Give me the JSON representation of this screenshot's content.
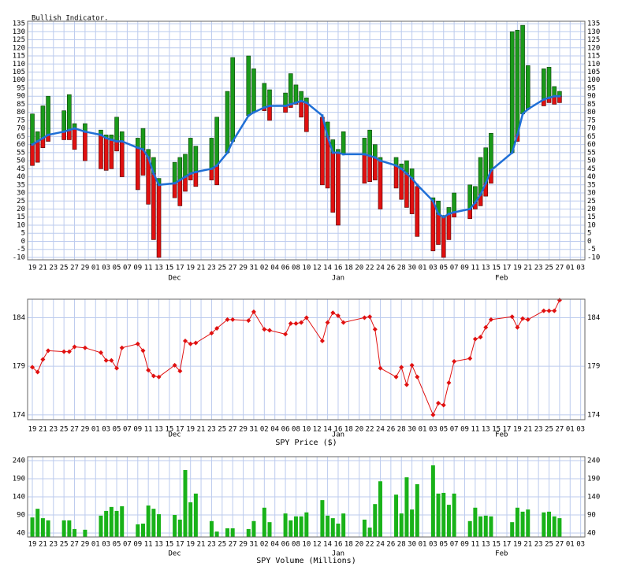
{
  "chart_data": [
    {
      "type": "range-bar",
      "title": "Bullish Indicator.",
      "x": [
        0,
        1,
        2,
        3,
        6,
        7,
        8,
        10,
        13,
        14,
        15,
        16,
        17,
        20,
        21,
        22,
        23,
        24,
        27,
        28,
        29,
        30,
        31,
        34,
        35,
        37,
        38,
        41,
        42,
        44,
        45,
        48,
        49,
        50,
        51,
        52,
        55,
        56,
        57,
        58,
        59,
        63,
        64,
        65,
        66,
        69,
        70,
        71,
        72,
        73,
        76,
        77,
        78,
        79,
        80,
        83,
        84,
        85,
        86,
        87,
        91,
        92,
        93,
        94,
        97,
        98,
        99,
        100
      ],
      "high": [
        79,
        68,
        84,
        90,
        81,
        91,
        73,
        73,
        69,
        66,
        66,
        77,
        68,
        64,
        70,
        57,
        52,
        39,
        49,
        52,
        54,
        64,
        59,
        64,
        77,
        93,
        114,
        115,
        107,
        98,
        94,
        92,
        104,
        97,
        93,
        89,
        77,
        74,
        63,
        57,
        68,
        64,
        69,
        60,
        52,
        52,
        48,
        50,
        45,
        34,
        27,
        25,
        16,
        21,
        30,
        35,
        34,
        52,
        58,
        67,
        130,
        131,
        134,
        109,
        107,
        108,
        96,
        93
      ],
      "low": [
        47,
        49,
        58,
        62,
        63,
        63,
        57,
        50,
        45,
        44,
        45,
        56,
        40,
        32,
        41,
        23,
        1,
        -10,
        27,
        22,
        31,
        38,
        34,
        38,
        35,
        55,
        62,
        78,
        80,
        81,
        75,
        80,
        83,
        85,
        77,
        68,
        35,
        33,
        18,
        10,
        54,
        36,
        37,
        38,
        20,
        33,
        26,
        21,
        17,
        3,
        -6,
        -2,
        -10,
        1,
        15,
        14,
        20,
        22,
        28,
        36,
        55,
        62,
        79,
        82,
        84,
        86,
        85,
        86
      ],
      "line": [
        60,
        62,
        64,
        66,
        68,
        69,
        70,
        68,
        66,
        64,
        63,
        62,
        62,
        58,
        57,
        52,
        42,
        35,
        36,
        38,
        40,
        42,
        43,
        45,
        47,
        55,
        62,
        78,
        80,
        83,
        84,
        84,
        85,
        86,
        87,
        86,
        78,
        65,
        55,
        55,
        54,
        54,
        53,
        52,
        50,
        47,
        45,
        42,
        39,
        35,
        25,
        17,
        15,
        17,
        18,
        20,
        24,
        29,
        36,
        44,
        55,
        66,
        79,
        82,
        88,
        89,
        90,
        90
      ],
      "up_color": "#1a9a1a",
      "down_color": "#e01010",
      "line_color": "#1f6fd6",
      "xlim": [
        -0.9,
        104.8
      ],
      "xticks": [
        {
          "value": 0,
          "label": "19"
        },
        {
          "value": 2,
          "label": "21"
        },
        {
          "value": 4,
          "label": "23"
        },
        {
          "value": 6,
          "label": "25"
        },
        {
          "value": 8,
          "label": "27"
        },
        {
          "value": 10,
          "label": "29"
        },
        {
          "value": 12,
          "label": "01"
        },
        {
          "value": 14,
          "label": "03"
        },
        {
          "value": 16,
          "label": "05"
        },
        {
          "value": 18,
          "label": "07"
        },
        {
          "value": 20,
          "label": "09"
        },
        {
          "value": 22,
          "label": "11"
        },
        {
          "value": 24,
          "label": "13"
        },
        {
          "value": 26,
          "label": "15"
        },
        {
          "value": 28,
          "label": "17"
        },
        {
          "value": 30,
          "label": "19"
        },
        {
          "value": 32,
          "label": "21"
        },
        {
          "value": 34,
          "label": "23"
        },
        {
          "value": 36,
          "label": "25"
        },
        {
          "value": 38,
          "label": "27"
        },
        {
          "value": 40,
          "label": "29"
        },
        {
          "value": 42,
          "label": "31"
        },
        {
          "value": 44,
          "label": "02"
        },
        {
          "value": 46,
          "label": "04"
        },
        {
          "value": 48,
          "label": "06"
        },
        {
          "value": 50,
          "label": "08"
        },
        {
          "value": 52,
          "label": "10"
        },
        {
          "value": 54,
          "label": "12"
        },
        {
          "value": 56,
          "label": "14"
        },
        {
          "value": 58,
          "label": "16"
        },
        {
          "value": 60,
          "label": "18"
        },
        {
          "value": 62,
          "label": "20"
        },
        {
          "value": 64,
          "label": "22"
        },
        {
          "value": 66,
          "label": "24"
        },
        {
          "value": 68,
          "label": "26"
        },
        {
          "value": 70,
          "label": "28"
        },
        {
          "value": 72,
          "label": "30"
        },
        {
          "value": 74,
          "label": "01"
        },
        {
          "value": 76,
          "label": "03"
        },
        {
          "value": 78,
          "label": "05"
        },
        {
          "value": 80,
          "label": "07"
        },
        {
          "value": 82,
          "label": "09"
        },
        {
          "value": 84,
          "label": "11"
        },
        {
          "value": 86,
          "label": "13"
        },
        {
          "value": 88,
          "label": "15"
        },
        {
          "value": 90,
          "label": "17"
        },
        {
          "value": 92,
          "label": "19"
        },
        {
          "value": 94,
          "label": "21"
        },
        {
          "value": 96,
          "label": "23"
        },
        {
          "value": 98,
          "label": "25"
        },
        {
          "value": 100,
          "label": "27"
        },
        {
          "value": 102,
          "label": "01"
        },
        {
          "value": 104,
          "label": "03"
        }
      ],
      "month_ticks": [
        {
          "value": 27,
          "label": "Dec"
        },
        {
          "value": 58,
          "label": "Jan"
        },
        {
          "value": 89,
          "label": "Feb"
        }
      ],
      "ylim": [
        -11.5,
        136.5
      ],
      "yticks": [
        -10,
        -5,
        0,
        5,
        10,
        15,
        20,
        25,
        30,
        35,
        40,
        45,
        50,
        55,
        60,
        65,
        70,
        75,
        80,
        85,
        90,
        95,
        100,
        105,
        110,
        115,
        120,
        125,
        130,
        135
      ],
      "grid": true
    },
    {
      "type": "line",
      "xlabel": "SPY Price ($)",
      "x": [
        0,
        1,
        2,
        3,
        6,
        7,
        8,
        10,
        13,
        14,
        15,
        16,
        17,
        20,
        21,
        22,
        23,
        24,
        27,
        28,
        29,
        30,
        31,
        34,
        35,
        37,
        38,
        41,
        42,
        44,
        45,
        48,
        49,
        50,
        51,
        52,
        55,
        56,
        57,
        58,
        59,
        63,
        64,
        65,
        66,
        69,
        70,
        71,
        72,
        73,
        76,
        77,
        78,
        79,
        80,
        83,
        84,
        85,
        86,
        87,
        91,
        92,
        93,
        94,
        97,
        98,
        99,
        100
      ],
      "values": [
        178.9,
        178.4,
        179.7,
        180.6,
        180.5,
        180.5,
        181.0,
        180.9,
        180.4,
        179.6,
        179.6,
        178.8,
        180.9,
        181.3,
        180.6,
        178.6,
        178.0,
        177.9,
        179.1,
        178.5,
        181.6,
        181.3,
        181.4,
        182.4,
        182.9,
        183.8,
        183.8,
        183.7,
        184.6,
        182.8,
        182.7,
        182.3,
        183.4,
        183.4,
        183.5,
        184.0,
        181.6,
        183.5,
        184.5,
        184.2,
        183.5,
        184.0,
        184.1,
        182.8,
        178.8,
        177.9,
        178.9,
        177.1,
        179.1,
        177.9,
        174.0,
        175.2,
        175.0,
        177.3,
        179.5,
        179.8,
        181.8,
        182.0,
        183.0,
        183.8,
        184.1,
        183.0,
        183.9,
        183.8,
        184.7,
        184.7,
        184.7,
        185.8
      ],
      "color": "#e01010",
      "xlim": [
        -0.9,
        104.8
      ],
      "xticks": [
        {
          "value": 0,
          "label": "19"
        },
        {
          "value": 2,
          "label": "21"
        },
        {
          "value": 4,
          "label": "23"
        },
        {
          "value": 6,
          "label": "25"
        },
        {
          "value": 8,
          "label": "27"
        },
        {
          "value": 10,
          "label": "29"
        },
        {
          "value": 12,
          "label": "01"
        },
        {
          "value": 14,
          "label": "03"
        },
        {
          "value": 16,
          "label": "05"
        },
        {
          "value": 18,
          "label": "07"
        },
        {
          "value": 20,
          "label": "09"
        },
        {
          "value": 22,
          "label": "11"
        },
        {
          "value": 24,
          "label": "13"
        },
        {
          "value": 26,
          "label": "15"
        },
        {
          "value": 28,
          "label": "17"
        },
        {
          "value": 30,
          "label": "19"
        },
        {
          "value": 32,
          "label": "21"
        },
        {
          "value": 34,
          "label": "23"
        },
        {
          "value": 36,
          "label": "25"
        },
        {
          "value": 38,
          "label": "27"
        },
        {
          "value": 40,
          "label": "29"
        },
        {
          "value": 42,
          "label": "31"
        },
        {
          "value": 44,
          "label": "02"
        },
        {
          "value": 46,
          "label": "04"
        },
        {
          "value": 48,
          "label": "06"
        },
        {
          "value": 50,
          "label": "08"
        },
        {
          "value": 52,
          "label": "10"
        },
        {
          "value": 54,
          "label": "12"
        },
        {
          "value": 56,
          "label": "14"
        },
        {
          "value": 58,
          "label": "16"
        },
        {
          "value": 60,
          "label": "18"
        },
        {
          "value": 62,
          "label": "20"
        },
        {
          "value": 64,
          "label": "22"
        },
        {
          "value": 66,
          "label": "24"
        },
        {
          "value": 68,
          "label": "26"
        },
        {
          "value": 70,
          "label": "28"
        },
        {
          "value": 72,
          "label": "30"
        },
        {
          "value": 74,
          "label": "01"
        },
        {
          "value": 76,
          "label": "03"
        },
        {
          "value": 78,
          "label": "05"
        },
        {
          "value": 80,
          "label": "07"
        },
        {
          "value": 82,
          "label": "09"
        },
        {
          "value": 84,
          "label": "11"
        },
        {
          "value": 86,
          "label": "13"
        },
        {
          "value": 88,
          "label": "15"
        },
        {
          "value": 90,
          "label": "17"
        },
        {
          "value": 92,
          "label": "19"
        },
        {
          "value": 94,
          "label": "21"
        },
        {
          "value": 96,
          "label": "23"
        },
        {
          "value": 98,
          "label": "25"
        },
        {
          "value": 100,
          "label": "27"
        },
        {
          "value": 102,
          "label": "01"
        },
        {
          "value": 104,
          "label": "03"
        }
      ],
      "month_ticks": [
        {
          "value": 27,
          "label": "Dec"
        },
        {
          "value": 58,
          "label": "Jan"
        },
        {
          "value": 89,
          "label": "Feb"
        }
      ],
      "ylim": [
        173.5,
        185.9
      ],
      "yticks": [
        174,
        179,
        184
      ],
      "grid": true
    },
    {
      "type": "bar",
      "xlabel": "SPY Volume (Millions)",
      "x": [
        0,
        1,
        2,
        3,
        6,
        7,
        8,
        10,
        13,
        14,
        15,
        16,
        17,
        20,
        21,
        22,
        23,
        24,
        27,
        28,
        29,
        30,
        31,
        34,
        35,
        37,
        38,
        41,
        42,
        44,
        45,
        48,
        49,
        50,
        51,
        52,
        55,
        56,
        57,
        58,
        59,
        63,
        64,
        65,
        66,
        69,
        70,
        71,
        72,
        73,
        76,
        77,
        78,
        79,
        80,
        83,
        84,
        85,
        86,
        87,
        91,
        92,
        93,
        94,
        97,
        98,
        99,
        100
      ],
      "values": [
        83,
        107,
        81,
        75,
        75,
        75,
        51,
        49,
        88,
        101,
        112,
        101,
        114,
        64,
        66,
        116,
        107,
        92,
        90,
        77,
        214,
        125,
        149,
        73,
        44,
        53,
        53,
        51,
        73,
        110,
        70,
        94,
        75,
        86,
        86,
        97,
        131,
        88,
        81,
        66,
        94,
        77,
        55,
        120,
        183,
        146,
        94,
        194,
        105,
        175,
        227,
        149,
        151,
        118,
        149,
        73,
        110,
        86,
        88,
        86,
        70,
        110,
        99,
        105,
        97,
        99,
        86,
        81
      ],
      "color": "#19b219",
      "xlim": [
        -0.9,
        104.8
      ],
      "xticks": [
        {
          "value": 0,
          "label": "19"
        },
        {
          "value": 2,
          "label": "21"
        },
        {
          "value": 4,
          "label": "23"
        },
        {
          "value": 6,
          "label": "25"
        },
        {
          "value": 8,
          "label": "27"
        },
        {
          "value": 10,
          "label": "29"
        },
        {
          "value": 12,
          "label": "01"
        },
        {
          "value": 14,
          "label": "03"
        },
        {
          "value": 16,
          "label": "05"
        },
        {
          "value": 18,
          "label": "07"
        },
        {
          "value": 20,
          "label": "09"
        },
        {
          "value": 22,
          "label": "11"
        },
        {
          "value": 24,
          "label": "13"
        },
        {
          "value": 26,
          "label": "15"
        },
        {
          "value": 28,
          "label": "17"
        },
        {
          "value": 30,
          "label": "19"
        },
        {
          "value": 32,
          "label": "21"
        },
        {
          "value": 34,
          "label": "23"
        },
        {
          "value": 36,
          "label": "25"
        },
        {
          "value": 38,
          "label": "27"
        },
        {
          "value": 40,
          "label": "29"
        },
        {
          "value": 42,
          "label": "31"
        },
        {
          "value": 44,
          "label": "02"
        },
        {
          "value": 46,
          "label": "04"
        },
        {
          "value": 48,
          "label": "06"
        },
        {
          "value": 50,
          "label": "08"
        },
        {
          "value": 52,
          "label": "10"
        },
        {
          "value": 54,
          "label": "12"
        },
        {
          "value": 56,
          "label": "14"
        },
        {
          "value": 58,
          "label": "16"
        },
        {
          "value": 60,
          "label": "18"
        },
        {
          "value": 62,
          "label": "20"
        },
        {
          "value": 64,
          "label": "22"
        },
        {
          "value": 66,
          "label": "24"
        },
        {
          "value": 68,
          "label": "26"
        },
        {
          "value": 70,
          "label": "28"
        },
        {
          "value": 72,
          "label": "30"
        },
        {
          "value": 74,
          "label": "01"
        },
        {
          "value": 76,
          "label": "03"
        },
        {
          "value": 78,
          "label": "05"
        },
        {
          "value": 80,
          "label": "07"
        },
        {
          "value": 82,
          "label": "09"
        },
        {
          "value": 84,
          "label": "11"
        },
        {
          "value": 86,
          "label": "13"
        },
        {
          "value": 88,
          "label": "15"
        },
        {
          "value": 90,
          "label": "17"
        },
        {
          "value": 92,
          "label": "19"
        },
        {
          "value": 94,
          "label": "21"
        },
        {
          "value": 96,
          "label": "23"
        },
        {
          "value": 98,
          "label": "25"
        },
        {
          "value": 100,
          "label": "27"
        },
        {
          "value": 102,
          "label": "01"
        },
        {
          "value": 104,
          "label": "03"
        }
      ],
      "month_ticks": [
        {
          "value": 27,
          "label": "Dec"
        },
        {
          "value": 58,
          "label": "Jan"
        },
        {
          "value": 89,
          "label": "Feb"
        }
      ],
      "ylim": [
        29,
        251
      ],
      "yticks": [
        40,
        90,
        140,
        190,
        240
      ],
      "grid": true
    }
  ]
}
